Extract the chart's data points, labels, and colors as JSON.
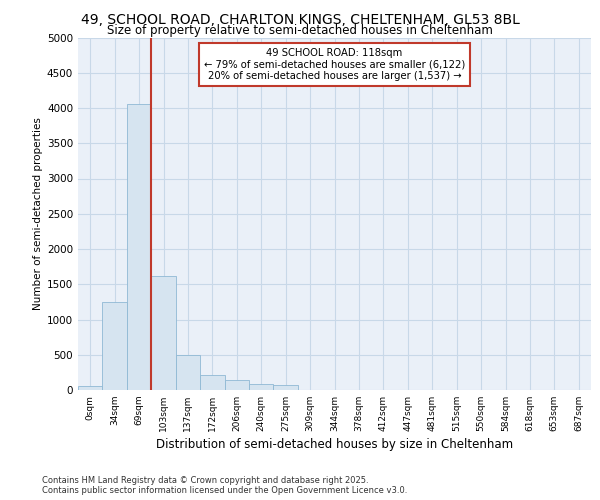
{
  "title_line1": "49, SCHOOL ROAD, CHARLTON KINGS, CHELTENHAM, GL53 8BL",
  "title_line2": "Size of property relative to semi-detached houses in Cheltenham",
  "xlabel": "Distribution of semi-detached houses by size in Cheltenham",
  "ylabel": "Number of semi-detached properties",
  "footer_line1": "Contains HM Land Registry data © Crown copyright and database right 2025.",
  "footer_line2": "Contains public sector information licensed under the Open Government Licence v3.0.",
  "annotation_line1": "49 SCHOOL ROAD: 118sqm",
  "annotation_line2": "← 79% of semi-detached houses are smaller (6,122)",
  "annotation_line3": "20% of semi-detached houses are larger (1,537) →",
  "bar_color": "#d6e4f0",
  "bar_edge_color": "#8fb8d4",
  "marker_line_color": "#c0392b",
  "annotation_box_edge_color": "#c0392b",
  "grid_color": "#c8d8e8",
  "background_color": "#eaf0f8",
  "categories": [
    "0sqm",
    "34sqm",
    "69sqm",
    "103sqm",
    "137sqm",
    "172sqm",
    "206sqm",
    "240sqm",
    "275sqm",
    "309sqm",
    "344sqm",
    "378sqm",
    "412sqm",
    "447sqm",
    "481sqm",
    "515sqm",
    "550sqm",
    "584sqm",
    "618sqm",
    "653sqm",
    "687sqm"
  ],
  "values": [
    50,
    1250,
    4050,
    1620,
    490,
    210,
    140,
    90,
    70,
    0,
    0,
    0,
    0,
    0,
    0,
    0,
    0,
    0,
    0,
    0,
    0
  ],
  "marker_bin_index": 3,
  "ylim": [
    0,
    5000
  ],
  "yticks": [
    0,
    500,
    1000,
    1500,
    2000,
    2500,
    3000,
    3500,
    4000,
    4500,
    5000
  ]
}
